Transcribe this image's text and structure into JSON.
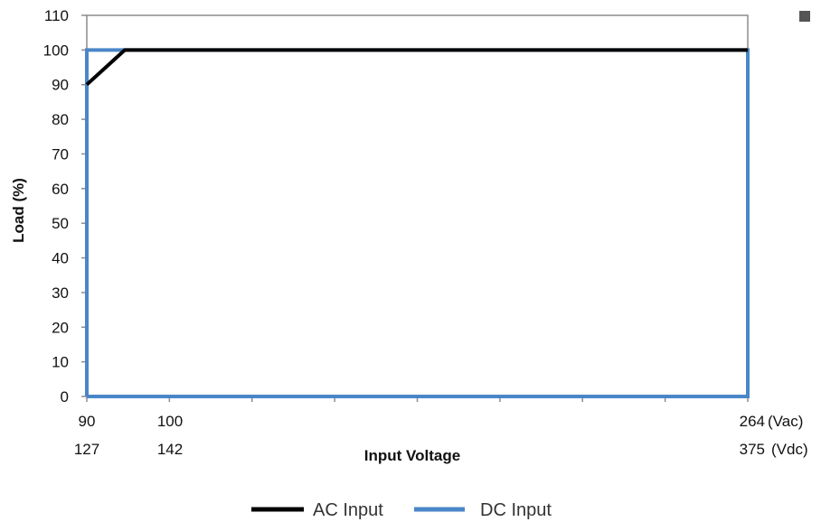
{
  "chart_data": {
    "type": "line",
    "xlabel": "Input Voltage",
    "ylabel": "Load (%)",
    "ylim": [
      0,
      110
    ],
    "y_ticks": [
      "0",
      "10",
      "20",
      "30",
      "40",
      "50",
      "60",
      "70",
      "80",
      "90",
      "100",
      "110"
    ],
    "xlim": [
      90,
      264
    ],
    "x_tick_labels": [
      {
        "ac": "90",
        "dc": "127"
      },
      {
        "ac": "100",
        "dc": "142"
      },
      {
        "ac": "264",
        "dc": "375"
      }
    ],
    "x_unit_labels": {
      "ac": "(Vac)",
      "dc": "(Vdc)"
    },
    "grid": false,
    "legend_position": "bottom",
    "series": [
      {
        "name": "AC Input",
        "color": "#000000",
        "x": [
          90,
          100,
          264
        ],
        "y": [
          90,
          100,
          100
        ]
      },
      {
        "name": "DC Input",
        "color": "#4a86c8",
        "x": [
          90,
          90,
          264,
          264,
          90
        ],
        "y": [
          0,
          100,
          100,
          0,
          0
        ]
      }
    ],
    "marker_icon": "small-square"
  }
}
